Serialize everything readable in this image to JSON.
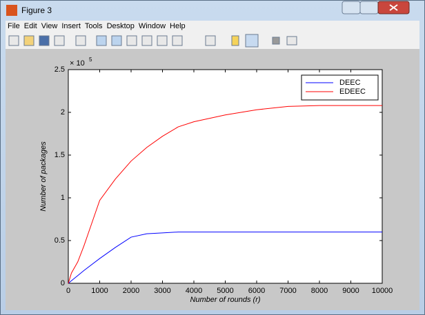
{
  "window": {
    "title": "Figure 3",
    "menu": [
      "File",
      "Edit",
      "View",
      "Insert",
      "Tools",
      "Desktop",
      "Window",
      "Help"
    ]
  },
  "chart_data": {
    "type": "line",
    "x_label": "Number of rounds (r)",
    "y_label": "Number of packages",
    "y_exponent_base": "× 10",
    "y_exponent": "5",
    "x": [
      0,
      100,
      300,
      500,
      1000,
      1500,
      2000,
      2500,
      3000,
      3500,
      4000,
      5000,
      6000,
      7000,
      8000,
      9000,
      10000
    ],
    "series": [
      {
        "name": "DEEC",
        "color": "#0000ff",
        "values": [
          0,
          0.03,
          0.09,
          0.15,
          0.29,
          0.42,
          0.54,
          0.58,
          0.59,
          0.6,
          0.6,
          0.6,
          0.6,
          0.6,
          0.6,
          0.6,
          0.6
        ]
      },
      {
        "name": "EDEEC",
        "color": "#ff0000",
        "values": [
          0,
          0.12,
          0.25,
          0.44,
          0.97,
          1.22,
          1.43,
          1.59,
          1.72,
          1.83,
          1.89,
          1.97,
          2.03,
          2.07,
          2.08,
          2.08,
          2.08
        ]
      }
    ],
    "xlim": [
      0,
      10000
    ],
    "xticks": [
      0,
      1000,
      2000,
      3000,
      4000,
      5000,
      6000,
      7000,
      8000,
      9000,
      10000
    ],
    "ylim": [
      0,
      2.5
    ],
    "yticks": [
      0,
      0.5,
      1,
      1.5,
      2,
      2.5
    ],
    "grid": false,
    "legend": "upper-right"
  }
}
